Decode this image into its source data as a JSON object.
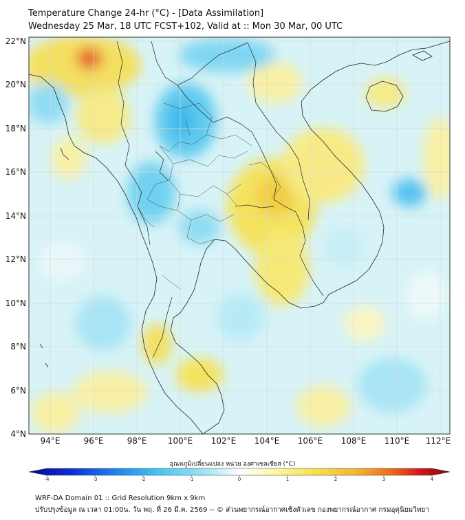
{
  "title": {
    "line1": "Temperature Change 24-hr (°C) - [Data Assimilation]",
    "line2": "Wednesday 25 Mar, 18 UTC FCST+102, Valid at :: Mon 30 Mar, 00 UTC"
  },
  "map": {
    "lat_labels": [
      "22°N",
      "20°N",
      "18°N",
      "16°N",
      "14°N",
      "12°N",
      "10°N",
      "8°N",
      "6°N",
      "4°N"
    ],
    "lon_labels": [
      "94°E",
      "96°E",
      "98°E",
      "100°E",
      "102°E",
      "104°E",
      "106°E",
      "108°E",
      "110°E",
      "112°E"
    ],
    "extent": {
      "lon_min": 93,
      "lon_max": 112.5,
      "lat_min": 4,
      "lat_max": 22.2
    }
  },
  "colorbar": {
    "title": "อุณหภูมิเปลี่ยนแปลง หน่วย องศาเซลเซียส (°C)",
    "ticks": [
      "-4",
      "-3",
      "-2",
      "-1",
      "0",
      "1",
      "2",
      "3",
      "4"
    ],
    "colors": [
      "#08088a",
      "#0a2fd6",
      "#1f7ef0",
      "#3dc2f0",
      "#9ee6f5",
      "#ffffff",
      "#fff7a8",
      "#f5e24a",
      "#f5b430",
      "#ee6a1c",
      "#d6131a",
      "#7a0a0a"
    ]
  },
  "footer": {
    "line1": "WRF-DA Domain 01 :: Grid Resolution 9km x 9km",
    "line2": "ปรับปรุงข้อมูล ณ เวลา 01:00น. วัน พฤ. ที่ 26 มี.ค. 2569 -- © ส่วนพยากรณ์อากาศเชิงตัวเลข กองพยากรณ์อากาศ กรมอุตุนิยมวิทยา"
  }
}
